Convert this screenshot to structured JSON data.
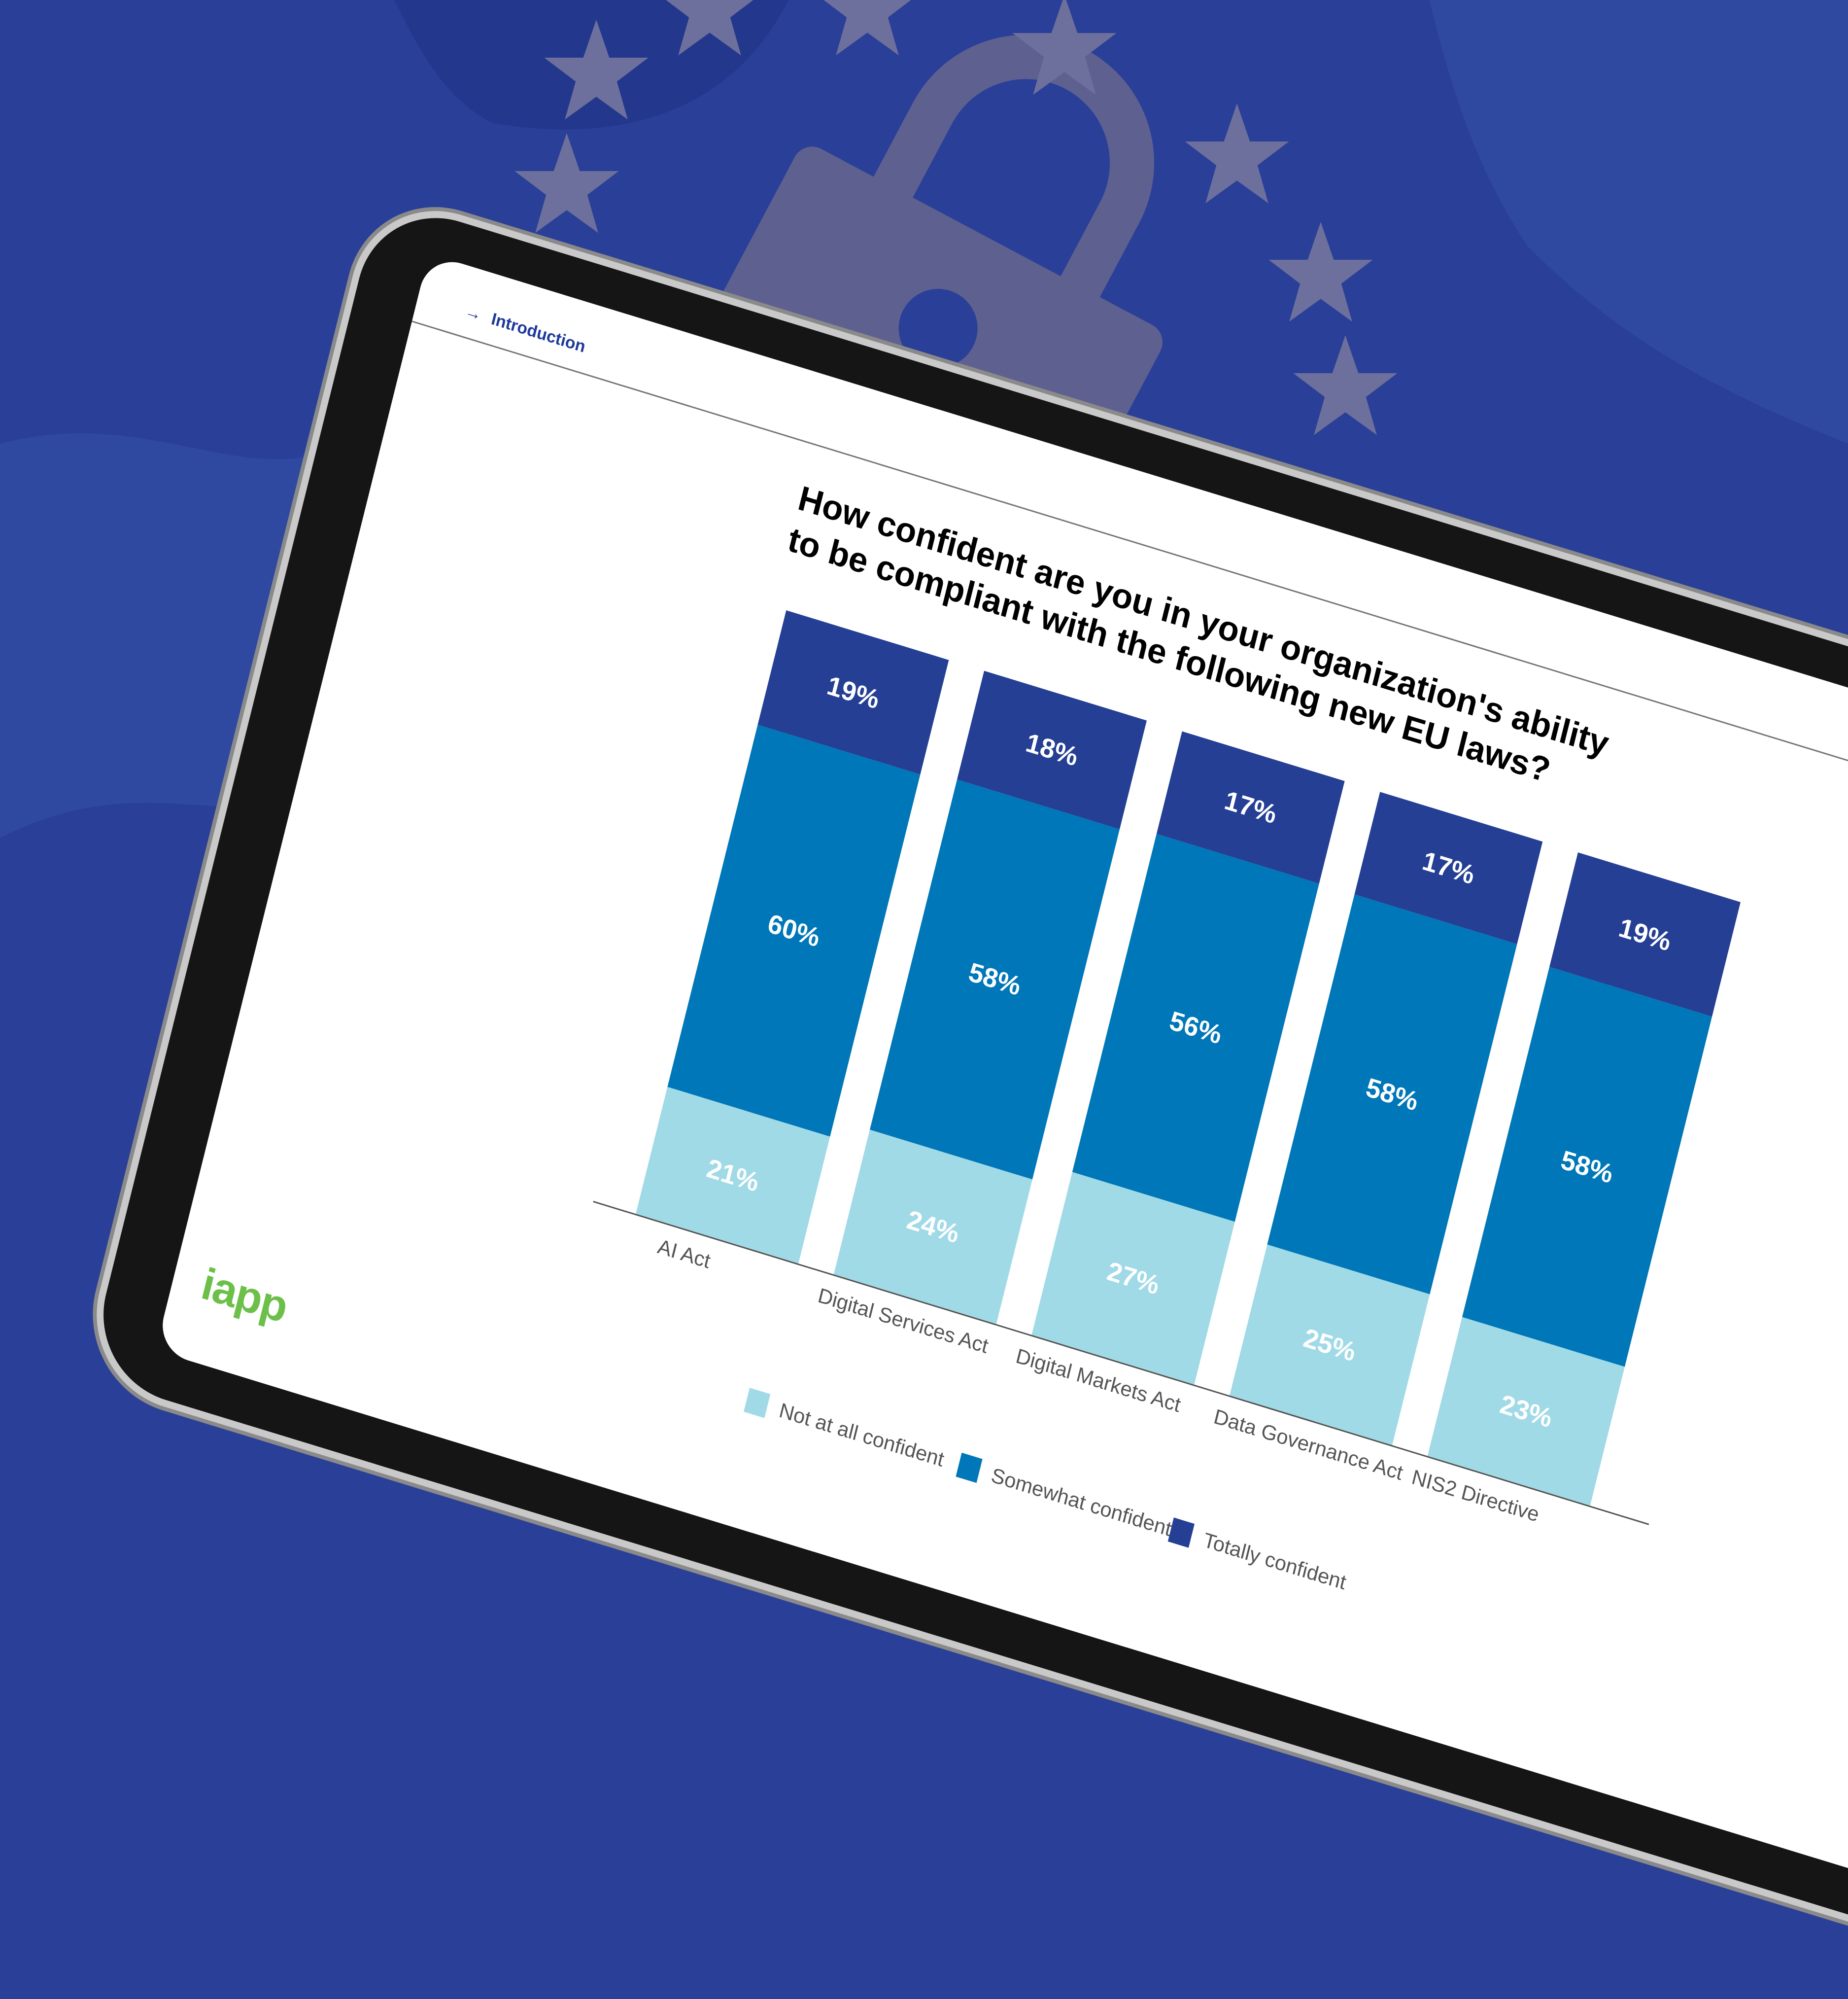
{
  "header": {
    "nav_label": "Introduction",
    "nav_icon": "arrow-right-icon"
  },
  "logo": {
    "text": "iapp",
    "color": "#6cc04a"
  },
  "colors": {
    "background": "#2a3f97",
    "not_at_all": "#a0dae6",
    "somewhat": "#0077b8",
    "totally": "#243f94"
  },
  "chart_data": {
    "type": "bar",
    "stacked": true,
    "title": "How confident are you in your organization's ability to be compliant with the following new EU laws?",
    "title_lines": [
      "How confident are you in your organization's ability",
      "to be compliant with the following new EU laws?"
    ],
    "categories": [
      "AI Act",
      "Digital Services Act",
      "Digital Markets Act",
      "Data Governance Act",
      "NIS2 Directive"
    ],
    "series": [
      {
        "name": "Not at all confident",
        "color": "#a0dae6",
        "values": [
          21,
          24,
          27,
          25,
          23
        ]
      },
      {
        "name": "Somewhat confident",
        "color": "#0077b8",
        "values": [
          60,
          58,
          56,
          58,
          58
        ]
      },
      {
        "name": "Totally confident",
        "color": "#243f94",
        "values": [
          19,
          18,
          17,
          17,
          19
        ]
      }
    ],
    "ylim": [
      0,
      100
    ],
    "unit": "%",
    "legend_position": "bottom",
    "grid": false
  }
}
